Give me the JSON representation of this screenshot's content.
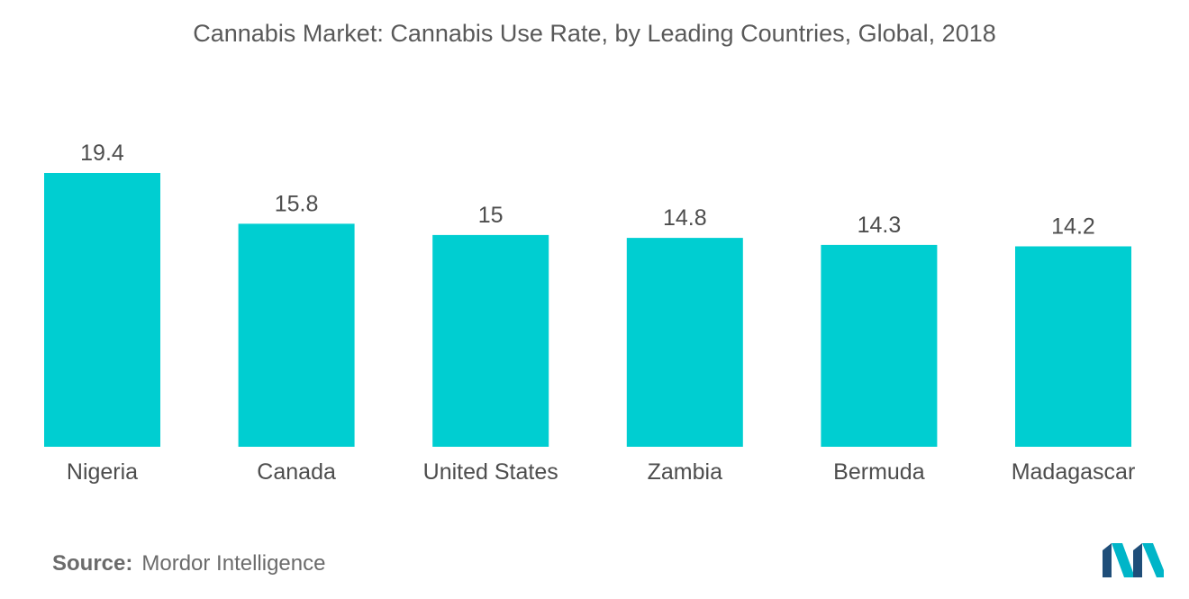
{
  "chart_data": {
    "type": "bar",
    "title": "Cannabis Market: Cannabis Use Rate, by Leading Countries, Global, 2018",
    "categories": [
      "Nigeria",
      "Canada",
      "United States",
      "Zambia",
      "Bermuda",
      "Madagascar"
    ],
    "values": [
      19.4,
      15.8,
      15,
      14.8,
      14.3,
      14.2
    ],
    "value_labels": [
      "19.4",
      "15.8",
      "15",
      "14.8",
      "14.3",
      "14.2"
    ],
    "xlabel": "",
    "ylabel": "",
    "ylim": [
      0,
      19.4
    ],
    "grid": false,
    "legend": "none",
    "bar_color": "#00CED1"
  },
  "source": {
    "label": "Source:",
    "text": "Mordor Intelligence"
  },
  "logo": {
    "icon": "mordor-intelligence-logo-icon",
    "colors": [
      "#1F4E79",
      "#00B5C8"
    ]
  }
}
